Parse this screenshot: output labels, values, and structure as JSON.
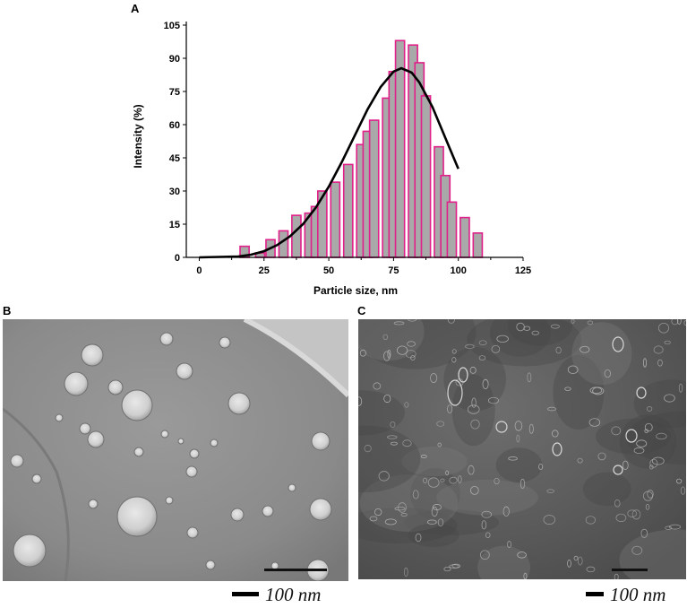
{
  "panels": {
    "a_label": "A",
    "b_label": "B",
    "c_label": "C"
  },
  "chart_data": {
    "type": "bar",
    "xlabel": "Particle size, nm",
    "ylabel": "Intensity (%)",
    "xlim": [
      -5,
      125
    ],
    "ylim": [
      0,
      105
    ],
    "xticks": [
      0,
      25,
      50,
      75,
      100,
      125
    ],
    "yticks": [
      0,
      15,
      30,
      45,
      60,
      75,
      90,
      105
    ],
    "bar_width": 3.5,
    "bars": [
      {
        "x": 17.5,
        "y": 5
      },
      {
        "x": 23.5,
        "y": 2
      },
      {
        "x": 27.5,
        "y": 8
      },
      {
        "x": 32.5,
        "y": 12
      },
      {
        "x": 37.5,
        "y": 19
      },
      {
        "x": 42.5,
        "y": 20
      },
      {
        "x": 45.0,
        "y": 23
      },
      {
        "x": 47.5,
        "y": 30
      },
      {
        "x": 52.5,
        "y": 34
      },
      {
        "x": 57.5,
        "y": 42
      },
      {
        "x": 62.5,
        "y": 51
      },
      {
        "x": 65.0,
        "y": 57
      },
      {
        "x": 67.5,
        "y": 62
      },
      {
        "x": 72.5,
        "y": 72
      },
      {
        "x": 75.0,
        "y": 84
      },
      {
        "x": 77.5,
        "y": 98
      },
      {
        "x": 82.5,
        "y": 96
      },
      {
        "x": 85.0,
        "y": 88
      },
      {
        "x": 87.5,
        "y": 73
      },
      {
        "x": 92.5,
        "y": 50
      },
      {
        "x": 95.0,
        "y": 37
      },
      {
        "x": 97.5,
        "y": 25
      },
      {
        "x": 102.5,
        "y": 18
      },
      {
        "x": 107.5,
        "y": 11
      }
    ],
    "fit_curve": [
      {
        "x": 0,
        "y": 0
      },
      {
        "x": 15,
        "y": 0.4
      },
      {
        "x": 20,
        "y": 1.2
      },
      {
        "x": 25,
        "y": 2.8
      },
      {
        "x": 30,
        "y": 5.5
      },
      {
        "x": 35,
        "y": 9.5
      },
      {
        "x": 40,
        "y": 15
      },
      {
        "x": 45,
        "y": 22.5
      },
      {
        "x": 50,
        "y": 32
      },
      {
        "x": 55,
        "y": 43
      },
      {
        "x": 60,
        "y": 55
      },
      {
        "x": 65,
        "y": 67
      },
      {
        "x": 70,
        "y": 77
      },
      {
        "x": 75,
        "y": 84
      },
      {
        "x": 78,
        "y": 85.5
      },
      {
        "x": 82,
        "y": 83.5
      },
      {
        "x": 85,
        "y": 79
      },
      {
        "x": 90,
        "y": 68
      },
      {
        "x": 95,
        "y": 54
      },
      {
        "x": 100,
        "y": 40
      }
    ],
    "colors": {
      "bar_fill": "#a9a9a9",
      "bar_edge": "#e0218a",
      "curve": "#000000"
    }
  },
  "micrographs": {
    "b_scale_label": "100 nm",
    "c_scale_label": "100 nm"
  }
}
